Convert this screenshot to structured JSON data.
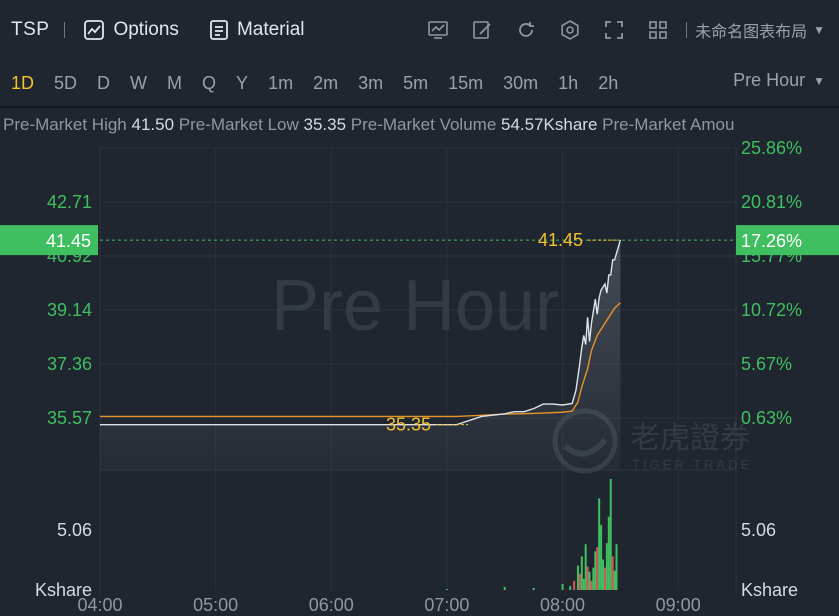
{
  "header": {
    "symbol": "TSP",
    "options_label": "Options",
    "material_label": "Material",
    "layout_label": "未命名图表布局",
    "icons": [
      "chart-icon",
      "draw-icon",
      "refresh-icon",
      "settings-icon",
      "fullscreen-icon",
      "grid-icon"
    ]
  },
  "periods": [
    "1D",
    "5D",
    "D",
    "W",
    "M",
    "Q",
    "Y",
    "1m",
    "2m",
    "3m",
    "5m",
    "15m",
    "30m",
    "1h",
    "2h"
  ],
  "active_period": "1D",
  "mode_label": "Pre Hour",
  "info": {
    "high_label": "Pre-Market High",
    "high_value": "41.50",
    "low_label": "Pre-Market Low",
    "low_value": "35.35",
    "volume_label": "Pre-Market Volume",
    "volume_value": "54.57Kshare",
    "amount_label": "Pre-Market Amou"
  },
  "watermark": {
    "text": "Pre Hour",
    "brand_cn": "老虎證券",
    "brand_en": "TIGER TRADE"
  },
  "colors": {
    "background": "#1f2630",
    "up": "#3fbf5f",
    "down": "#e0525a",
    "price_line": "#dfe3e8",
    "avg_line": "#e8932a",
    "highlight": "#f2c230"
  },
  "chart_data": {
    "type": "line",
    "price_axis_left": [
      "42.71",
      "40.92",
      "39.14",
      "37.36",
      "35.57"
    ],
    "percent_axis_right": [
      "25.86%",
      "20.81%",
      "15.77%",
      "10.72%",
      "5.67%",
      "0.63%"
    ],
    "current_price": "41.45",
    "current_percent": "17.26%",
    "max_label": "41.45",
    "min_label": "35.35",
    "volume_axis": "5.06",
    "volume_unit": "Kshare",
    "x_ticks": [
      "04:00",
      "05:00",
      "06:00",
      "07:00",
      "08:00",
      "09:00"
    ],
    "price": {
      "x": [
        "04:00",
        "07:05",
        "07:18",
        "07:30",
        "07:35",
        "07:40",
        "07:45",
        "07:50",
        "07:55",
        "08:00",
        "08:05",
        "08:07",
        "08:09",
        "08:10",
        "08:11",
        "08:12",
        "08:13",
        "08:14",
        "08:15",
        "08:17",
        "08:18",
        "08:19",
        "08:20",
        "08:22",
        "08:23",
        "08:24",
        "08:25",
        "08:26",
        "08:27",
        "08:30"
      ],
      "y": [
        35.35,
        35.35,
        35.62,
        35.71,
        35.78,
        35.78,
        35.88,
        36.03,
        36.03,
        36.0,
        36.05,
        36.5,
        37.4,
        37.9,
        38.3,
        38.0,
        38.9,
        38.1,
        38.7,
        39.5,
        39.0,
        39.55,
        39.8,
        40.0,
        39.7,
        40.3,
        40.3,
        40.8,
        40.8,
        41.45
      ]
    },
    "average": {
      "x": [
        "04:00",
        "07:05",
        "07:18",
        "07:30",
        "07:45",
        "08:00",
        "08:05",
        "08:08",
        "08:10",
        "08:13",
        "08:15",
        "08:18",
        "08:20",
        "08:23",
        "08:25",
        "08:27",
        "08:30"
      ],
      "y": [
        35.62,
        35.62,
        35.66,
        35.7,
        35.72,
        35.76,
        35.8,
        36.1,
        36.6,
        37.2,
        37.8,
        38.3,
        38.5,
        38.8,
        39.0,
        39.2,
        39.38
      ]
    },
    "volume": {
      "x": [
        "07:00",
        "07:30",
        "07:45",
        "08:00",
        "08:04",
        "08:06",
        "08:08",
        "08:09",
        "08:10",
        "08:11",
        "08:12",
        "08:13",
        "08:14",
        "08:15",
        "08:16",
        "08:17",
        "08:18",
        "08:19",
        "08:20",
        "08:21",
        "08:22",
        "08:23",
        "08:24",
        "08:25",
        "08:26",
        "08:27",
        "08:28"
      ],
      "y": [
        0.1,
        0.3,
        0.2,
        0.6,
        0.4,
        0.9,
        2.4,
        1.6,
        3.3,
        1.1,
        4.5,
        2.3,
        1.8,
        0.9,
        2.2,
        3.8,
        4.2,
        9.0,
        6.4,
        3.0,
        2.2,
        4.6,
        7.2,
        10.9,
        3.3,
        1.9,
        4.5
      ],
      "up": [
        true,
        true,
        true,
        true,
        true,
        false,
        true,
        false,
        true,
        true,
        true,
        false,
        true,
        false,
        true,
        true,
        false,
        true,
        true,
        true,
        false,
        true,
        true,
        true,
        false,
        true,
        true
      ]
    }
  }
}
